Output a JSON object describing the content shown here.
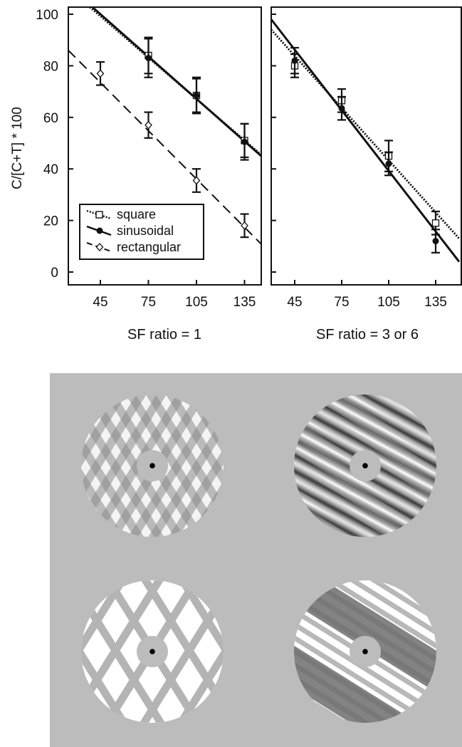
{
  "chart_data": [
    {
      "type": "line",
      "panel": "left",
      "xlabel": "SF ratio = 1",
      "ylabel": "C/[C+T] * 100",
      "xlim": [
        25,
        150
      ],
      "ylim": [
        -5,
        105
      ],
      "xticks": [
        45,
        75,
        105,
        135
      ],
      "yticks": [
        0,
        20,
        40,
        60,
        80,
        100
      ],
      "legend_position": "bottom-left",
      "series": [
        {
          "name": "square",
          "style": "dotted",
          "marker": "square",
          "x": [
            75,
            105,
            135
          ],
          "y": [
            84,
            68.5,
            51
          ],
          "err": [
            7,
            6.5,
            6.5
          ],
          "fit": [
            [
              25,
              110
            ],
            [
              150,
              43
            ]
          ]
        },
        {
          "name": "sinusoidal",
          "style": "solid",
          "marker": "circle",
          "x": [
            75,
            105,
            135
          ],
          "y": [
            83,
            68.5,
            50.5
          ],
          "err": [
            7.5,
            7,
            7
          ],
          "fit": [
            [
              25,
              111
            ],
            [
              150,
              42.5
            ]
          ]
        },
        {
          "name": "rectangular",
          "style": "dashed",
          "marker": "diamond",
          "x": [
            45,
            75,
            105,
            135
          ],
          "y": [
            77,
            57,
            35.5,
            18
          ],
          "err": [
            4.5,
            5,
            4.5,
            4.5
          ],
          "fit": [
            [
              25,
              86
            ],
            [
              150,
              8
            ]
          ]
        }
      ]
    },
    {
      "type": "line",
      "panel": "right",
      "xlabel": "SF ratio = 3 or 6",
      "xlim": [
        30,
        150
      ],
      "ylim": [
        -5,
        105
      ],
      "xticks": [
        45,
        75,
        105,
        135
      ],
      "yticks": [
        0,
        20,
        40,
        60,
        80,
        100
      ],
      "series": [
        {
          "name": "square",
          "style": "dotted",
          "marker": "square",
          "x": [
            45,
            75,
            105,
            135
          ],
          "y": [
            80,
            66.5,
            45,
            19
          ],
          "err": [
            4.5,
            4.5,
            6,
            4.5
          ],
          "fit": [
            [
              30,
              94
            ],
            [
              150,
              13
            ]
          ]
        },
        {
          "name": "sinusoidal",
          "style": "solid",
          "marker": "circle",
          "x": [
            45,
            75,
            105,
            135
          ],
          "y": [
            82,
            63.5,
            42,
            12
          ],
          "err": [
            5,
            4.5,
            4.5,
            4.5
          ],
          "fit": [
            [
              30,
              98
            ],
            [
              150,
              4
            ]
          ]
        }
      ]
    }
  ],
  "stimuli": {
    "background": "#bcbcbc",
    "panels": [
      "plaid-square-sf1",
      "plaid-sinusoidal-sf3",
      "plaid-rectangular-sf1",
      "plaid-rectangular-sf6"
    ]
  }
}
